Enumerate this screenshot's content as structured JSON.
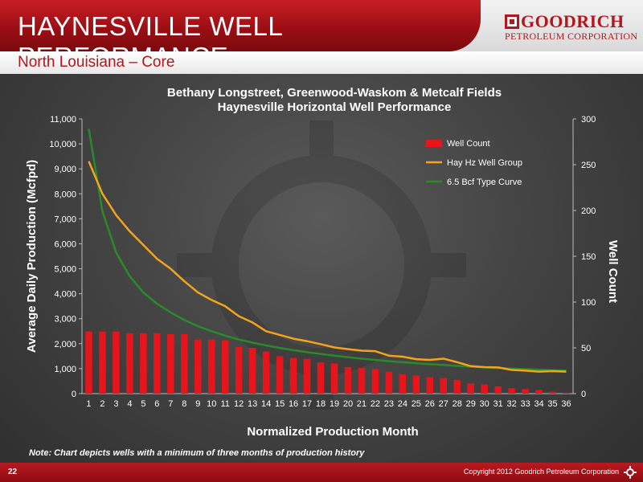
{
  "header": {
    "title": "HAYNESVILLE WELL PERFORMANCE",
    "subtitle": "North Louisiana – Core",
    "logo_line1": "GOODRICH",
    "logo_line2": "PETROLEUM CORPORATION"
  },
  "footer": {
    "page_number": "22",
    "copyright": "Copyright 2012 Goodrich Petroleum Corporation",
    "note": "Note:  Chart depicts wells with a minimum of three months of production history"
  },
  "colors": {
    "brand_red": "#b3161c",
    "bar": "#e8141c",
    "hay_line": "#f5a31a",
    "type_curve": "#2a8a2a"
  },
  "chart_data": {
    "type": "bar",
    "title": "Bethany Longstreet, Greenwood-Waskom & Metcalf Fields",
    "subtitle": "Haynesville Horizontal Well Performance",
    "xlabel": "Normalized Production Month",
    "ylabel": "Average Daily Production (Mcfpd)",
    "y2label": "Well Count",
    "categories": [
      "1",
      "2",
      "3",
      "4",
      "5",
      "6",
      "7",
      "8",
      "9",
      "10",
      "11",
      "12",
      "13",
      "14",
      "15",
      "16",
      "17",
      "18",
      "19",
      "20",
      "21",
      "22",
      "23",
      "24",
      "25",
      "26",
      "27",
      "28",
      "29",
      "30",
      "31",
      "32",
      "33",
      "34",
      "35",
      "36"
    ],
    "ylim": [
      0,
      11000
    ],
    "y2lim": [
      0,
      300
    ],
    "yticks": [
      "0",
      "1,000",
      "2,000",
      "3,000",
      "4,000",
      "5,000",
      "6,000",
      "7,000",
      "8,000",
      "9,000",
      "10,000",
      "11,000"
    ],
    "y2ticks": [
      "0",
      "50",
      "100",
      "150",
      "200",
      "250",
      "300"
    ],
    "legend_position": "top-right",
    "series": [
      {
        "name": "Well Count",
        "type": "bar",
        "axis": "right",
        "values": [
          68,
          68,
          68,
          66,
          66,
          66,
          65,
          65,
          59,
          59,
          58,
          51,
          50,
          46,
          41,
          39,
          38,
          34,
          33,
          29,
          28,
          27,
          24,
          21,
          20,
          18,
          17,
          15,
          11,
          10,
          8,
          6,
          5,
          4,
          2,
          1
        ]
      },
      {
        "name": "Hay Hz Well Group",
        "type": "line",
        "axis": "left",
        "values": [
          9300,
          8000,
          7150,
          6500,
          5950,
          5400,
          5000,
          4500,
          4050,
          3750,
          3500,
          3100,
          2850,
          2500,
          2350,
          2200,
          2100,
          1980,
          1850,
          1780,
          1720,
          1700,
          1520,
          1480,
          1380,
          1350,
          1400,
          1260,
          1100,
          1060,
          1050,
          950,
          920,
          880,
          900,
          880
        ]
      },
      {
        "name": "6.5 Bcf Type Curve",
        "type": "line",
        "axis": "left",
        "values": [
          10600,
          7300,
          5650,
          4700,
          4050,
          3600,
          3250,
          2950,
          2700,
          2500,
          2320,
          2170,
          2040,
          1930,
          1830,
          1740,
          1660,
          1590,
          1520,
          1460,
          1400,
          1350,
          1300,
          1260,
          1220,
          1180,
          1150,
          1110,
          1080,
          1050,
          1030,
          1000,
          980,
          960,
          940,
          920
        ]
      }
    ]
  }
}
